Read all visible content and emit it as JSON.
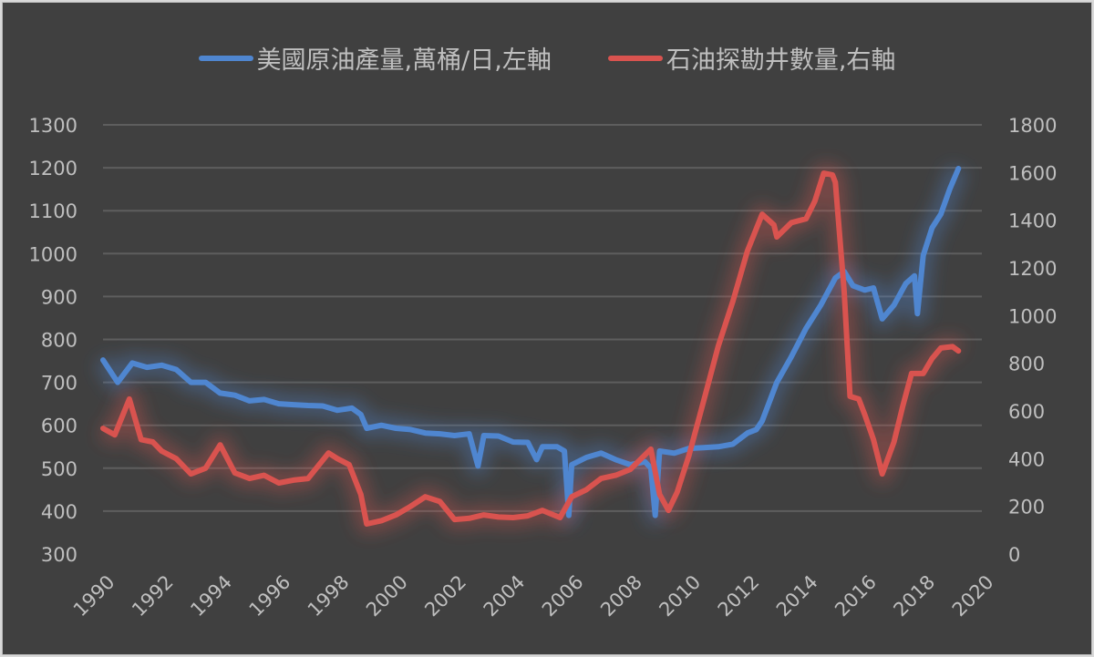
{
  "chart_data": {
    "type": "line",
    "title": "",
    "legend_position": "top",
    "grid": true,
    "x_axis": {
      "min": 1990,
      "max": 2020,
      "tick_step": 2,
      "tick_labels": [
        "1990",
        "1992",
        "1994",
        "1996",
        "1998",
        "2000",
        "2002",
        "2004",
        "2006",
        "2008",
        "2010",
        "2012",
        "2014",
        "2016",
        "2018",
        "2020"
      ]
    },
    "y_left": {
      "min": 300,
      "max": 1300,
      "step": 100,
      "tick_labels": [
        "300",
        "400",
        "500",
        "600",
        "700",
        "800",
        "900",
        "1000",
        "1100",
        "1200",
        "1300"
      ]
    },
    "y_right": {
      "min": 0,
      "max": 1800,
      "step": 200,
      "tick_labels": [
        "0",
        "200",
        "400",
        "600",
        "800",
        "1000",
        "1200",
        "1400",
        "1600",
        "1800"
      ]
    },
    "series": [
      {
        "name": "美國原油產量,萬桶/日,左軸",
        "axis": "left",
        "color": "#4f86d0",
        "x": [
          1990,
          1990.5,
          1991,
          1991.5,
          1992,
          1992.5,
          1993,
          1993.5,
          1994,
          1994.5,
          1995,
          1995.5,
          1996,
          1996.5,
          1997,
          1997.5,
          1998,
          1998.5,
          1998.8,
          1999,
          1999.5,
          2000,
          2000.5,
          2001,
          2001.5,
          2002,
          2002.5,
          2002.8,
          2003,
          2003.5,
          2004,
          2004.5,
          2004.8,
          2005,
          2005.5,
          2005.75,
          2005.9,
          2006,
          2006.5,
          2007,
          2007.5,
          2008,
          2008.5,
          2008.7,
          2008.85,
          2009,
          2009.5,
          2010,
          2010.5,
          2011,
          2011.5,
          2012,
          2012.3,
          2012.5,
          2013,
          2013.5,
          2014,
          2014.5,
          2015,
          2015.3,
          2015.6,
          2016,
          2016.3,
          2016.6,
          2017,
          2017.4,
          2017.7,
          2017.8,
          2018,
          2018.3,
          2018.6,
          2018.9,
          2019.2
        ],
        "y": [
          752,
          700,
          745,
          735,
          740,
          730,
          700,
          700,
          675,
          670,
          657,
          660,
          650,
          648,
          646,
          645,
          635,
          640,
          625,
          593,
          600,
          593,
          590,
          582,
          580,
          576,
          580,
          505,
          576,
          575,
          561,
          560,
          520,
          550,
          550,
          540,
          390,
          508,
          525,
          535,
          520,
          508,
          515,
          500,
          390,
          540,
          535,
          546,
          548,
          550,
          556,
          582,
          590,
          610,
          700,
          760,
          826,
          880,
          943,
          958,
          925,
          915,
          920,
          848,
          880,
          930,
          948,
          860,
          996,
          1060,
          1092,
          1150,
          1198
        ]
      },
      {
        "name": "石油探勘井數量,右軸",
        "axis": "right",
        "color": "#d9534f",
        "x": [
          1990,
          1990.4,
          1990.9,
          1991.3,
          1991.7,
          1992,
          1992.5,
          1993,
          1993.5,
          1994,
          1994.5,
          1995,
          1995.5,
          1996,
          1996.5,
          1997,
          1997.7,
          1998,
          1998.4,
          1998.8,
          1999,
          1999.5,
          2000,
          2000.5,
          2001,
          2001.5,
          2002,
          2002.5,
          2003,
          2003.5,
          2004,
          2004.5,
          2005,
          2005.6,
          2006,
          2006.5,
          2007,
          2007.5,
          2008,
          2008.7,
          2009,
          2009.3,
          2009.6,
          2010,
          2010.5,
          2011,
          2011.5,
          2012,
          2012.5,
          2012.9,
          2013,
          2013.5,
          2014,
          2014.3,
          2014.6,
          2014.9,
          2015,
          2015.3,
          2015.5,
          2015.8,
          2016,
          2016.3,
          2016.6,
          2017,
          2017.3,
          2017.6,
          2018,
          2018.3,
          2018.6,
          2019,
          2019.2
        ],
        "y": [
          527,
          500,
          650,
          480,
          470,
          432,
          400,
          336,
          360,
          458,
          340,
          317,
          330,
          298,
          310,
          317,
          424,
          400,
          375,
          250,
          126,
          140,
          164,
          200,
          240,
          220,
          145,
          150,
          164,
          155,
          153,
          160,
          183,
          153,
          240,
          270,
          317,
          330,
          355,
          440,
          250,
          183,
          260,
          413,
          640,
          871,
          1060,
          1272,
          1425,
          1380,
          1330,
          1390,
          1406,
          1480,
          1597,
          1590,
          1559,
          1100,
          661,
          650,
          585,
          480,
          336,
          470,
          620,
          757,
          757,
          820,
          864,
          870,
          852
        ]
      }
    ]
  }
}
